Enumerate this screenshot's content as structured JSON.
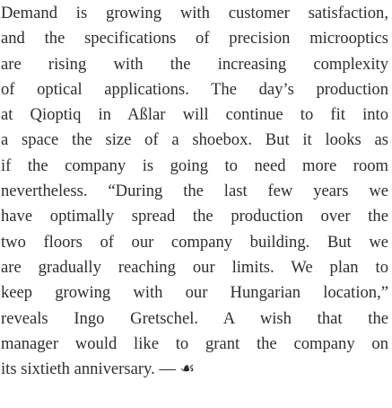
{
  "paragraph": {
    "lines": [
      "Demand is growing with customer satisfaction,",
      "and the specifications of precision microoptics",
      "are rising with the increasing complexity",
      "of optical applications. The day’s production",
      "at Qioptiq in Aßlar will continue to fit into",
      "a space the size of a shoebox. But it looks as",
      "if the company is going to need more room",
      "nevertheless. “During the last few years we",
      "have optimally spread the production over the",
      "two floors of our company building. But we",
      "are gradually reaching our limits. We plan to",
      "keep growing with our Hungarian location,”",
      "reveals Ingo Gretschel. A wish that the",
      "manager would like to grant the company on",
      "its sixtieth anniversary. — ☙"
    ]
  }
}
